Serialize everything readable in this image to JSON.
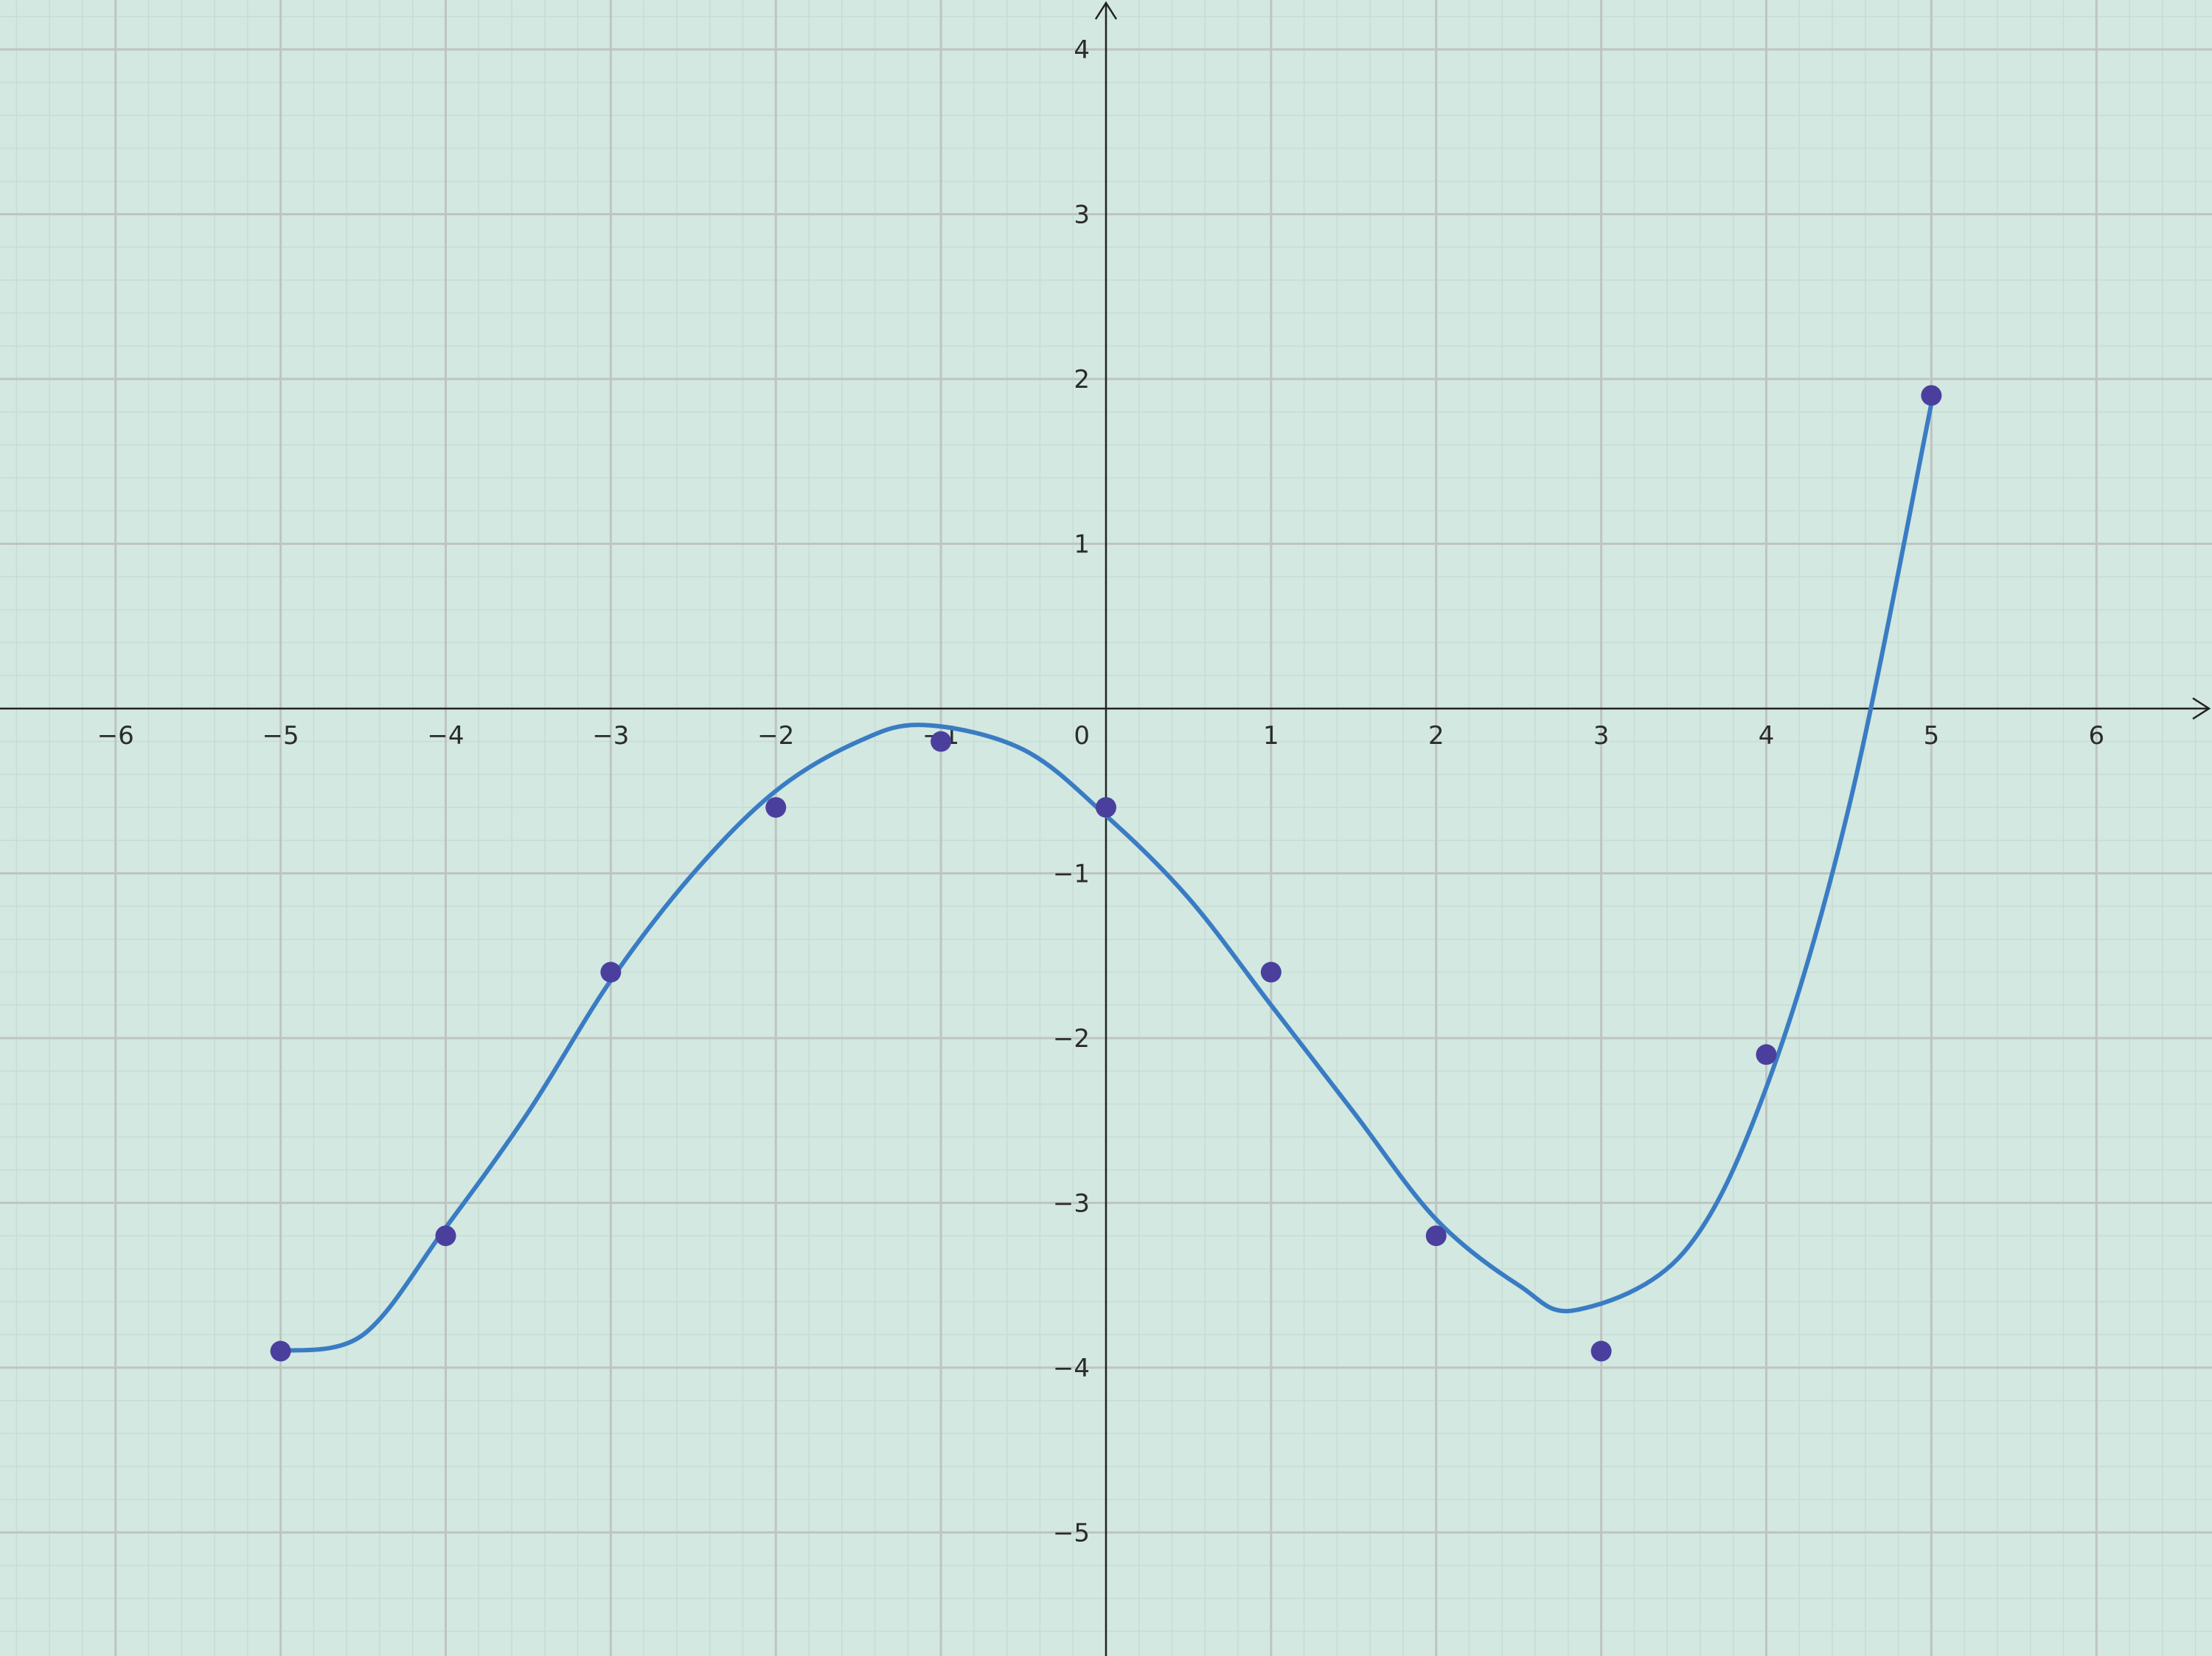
{
  "chart_data": {
    "type": "scatter",
    "title": "",
    "xlabel": "",
    "ylabel": "",
    "xlim": [
      -6.7,
      6.7
    ],
    "ylim": [
      -5.75,
      4.3
    ],
    "grid": true,
    "minor_grid": true,
    "x_ticks": [
      -6,
      -5,
      -4,
      -3,
      -2,
      -1,
      1,
      2,
      3,
      4,
      5,
      6
    ],
    "y_ticks": [
      -5,
      -4,
      -3,
      -2,
      -1,
      1,
      2,
      3,
      4
    ],
    "origin_label": "0",
    "series": [
      {
        "type": "scatter",
        "x": [
          -5,
          -4,
          -3,
          -2,
          -1,
          0,
          1,
          2,
          3,
          4,
          5
        ],
        "y": [
          -3.9,
          -3.2,
          -1.6,
          -0.6,
          -0.2,
          -0.6,
          -1.6,
          -3.2,
          -3.9,
          -2.1,
          1.9
        ]
      },
      {
        "type": "line",
        "x": [
          -5,
          -4.5,
          -4,
          -3.5,
          -3,
          -2.5,
          -2,
          -1.5,
          -1.1,
          -0.5,
          0,
          0.5,
          1,
          1.5,
          2,
          2.5,
          2.85,
          3.5,
          4,
          4.5,
          5
        ],
        "y": [
          -3.9,
          -3.8,
          -3.15,
          -2.45,
          -1.65,
          -1.0,
          -0.5,
          -0.2,
          -0.1,
          -0.25,
          -0.65,
          -1.15,
          -1.8,
          -2.45,
          -3.1,
          -3.5,
          -3.65,
          -3.3,
          -2.3,
          -0.6,
          1.85
        ]
      }
    ],
    "colors": {
      "background": "#d2e8e0",
      "major_grid": "#bfc4c1",
      "minor_grid": "#c6dcd4",
      "axis": "#222222",
      "points": "#4b3f9e",
      "curve": "#3a7cc4"
    }
  }
}
